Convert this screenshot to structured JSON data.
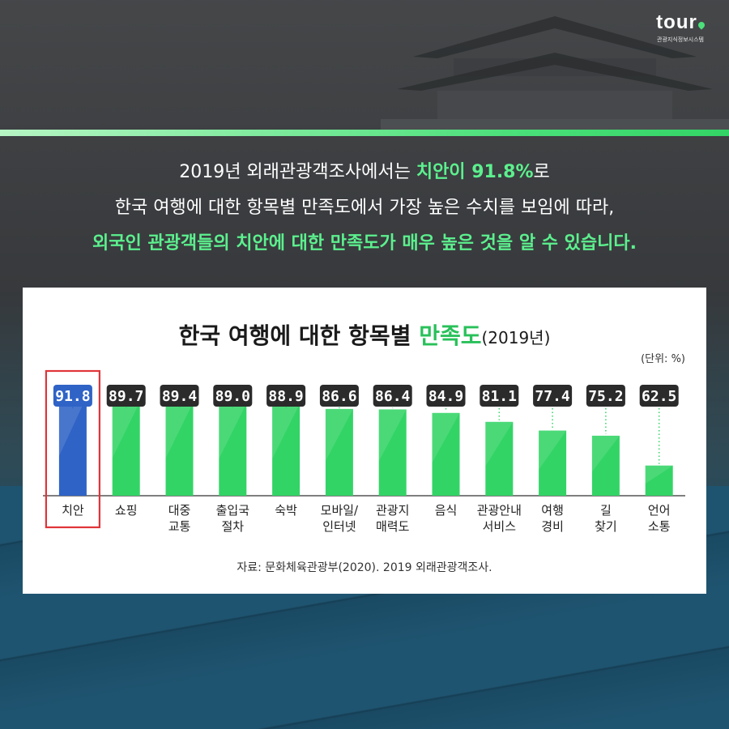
{
  "brand": {
    "name": "tour",
    "subtitle": "관광지식정보시스템"
  },
  "intro": {
    "line1_pre": "2019년 외래관광객조사에서는 ",
    "line1_highlight": "치안이 91.8%",
    "line1_post": "로",
    "line2": "한국 여행에 대한 항목별 만족도에서 가장 높은 수치를 보임에 따라,",
    "line3": "외국인 관광객들의 치안에 대한 만족도가 매우 높은 것을 알 수 있습니다."
  },
  "colors": {
    "accent_green": "#33d466",
    "highlight_blue": "#2f63c6",
    "highlight_box": "#e0353a",
    "label_bg": "#2b2b2b"
  },
  "chart_data": {
    "type": "bar",
    "title_pre": "한국 여행에 대한 항목별 ",
    "title_highlight": "만족도",
    "title_suffix": "(2019년)",
    "unit": "(단위: %)",
    "categories": [
      [
        "치안"
      ],
      [
        "쇼핑"
      ],
      [
        "대중",
        "교통"
      ],
      [
        "출입국",
        "절차"
      ],
      [
        "숙박"
      ],
      [
        "모바일/",
        "인터넷"
      ],
      [
        "관광지",
        "매력도"
      ],
      [
        "음식"
      ],
      [
        "관광안내",
        "서비스"
      ],
      [
        "여행",
        "경비"
      ],
      [
        "길",
        "찾기"
      ],
      [
        "언어",
        "소통"
      ]
    ],
    "values": [
      91.8,
      89.7,
      89.4,
      89.0,
      88.9,
      86.6,
      86.4,
      84.9,
      81.1,
      77.4,
      75.2,
      62.5
    ],
    "value_labels": [
      "91.8",
      "89.7",
      "89.4",
      "89.0",
      "88.9",
      "86.6",
      "86.4",
      "84.9",
      "81.1",
      "77.4",
      "75.2",
      "62.5"
    ],
    "highlight_index": 0,
    "source": "자료: 문화체육관광부(2020). 2019 외래관광객조사."
  }
}
